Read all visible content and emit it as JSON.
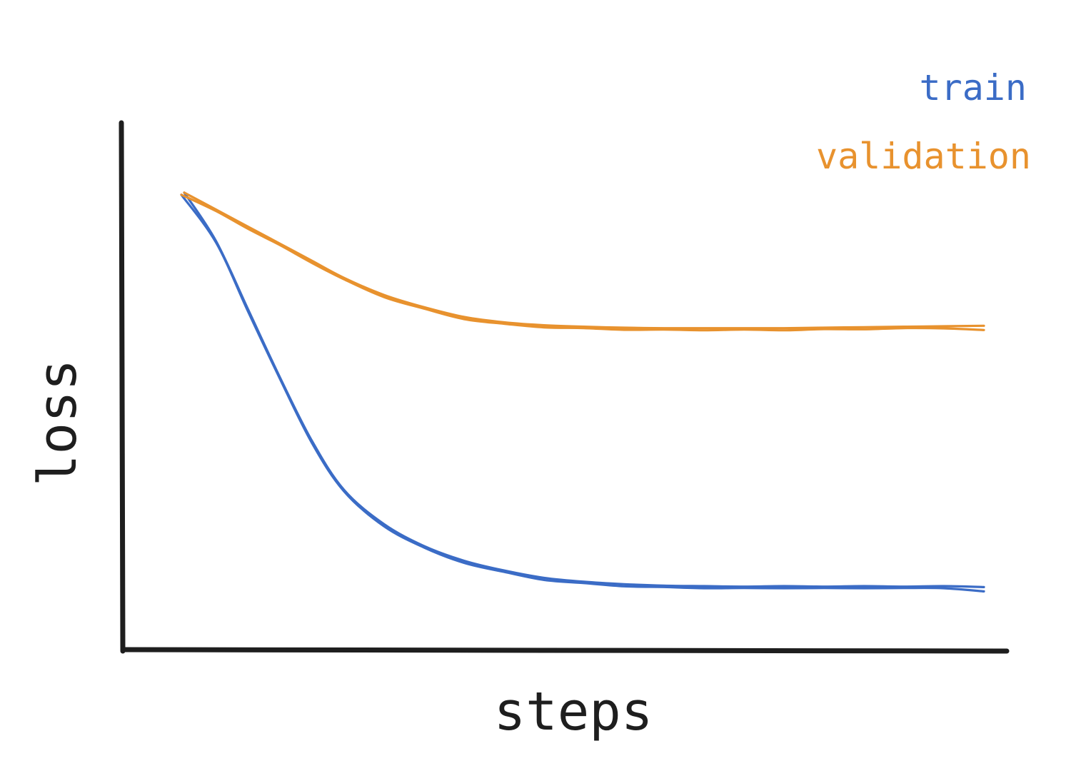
{
  "chart_data": {
    "type": "line",
    "title": "",
    "xlabel": "steps",
    "ylabel": "loss",
    "xlim": [
      0,
      100
    ],
    "ylim": [
      0,
      100
    ],
    "grid": false,
    "ticks_shown": false,
    "legend_placement": "top-right",
    "x": [
      0,
      4,
      8,
      12,
      16,
      20,
      25,
      30,
      35,
      40,
      45,
      50,
      55,
      60,
      65,
      70,
      75,
      80,
      85,
      90,
      95,
      100
    ],
    "series": [
      {
        "name": "train",
        "color": "#3b6cc6",
        "values": [
          93,
          83,
          69,
          55,
          42,
          32,
          25,
          20.5,
          17.5,
          15.5,
          14,
          13.2,
          12.7,
          12.4,
          12.3,
          12.2,
          12.3,
          12.2,
          12.3,
          12.2,
          12.3,
          12.1
        ]
      },
      {
        "name": "validation",
        "color": "#e8922e",
        "values": [
          93,
          89.5,
          86,
          82.5,
          79,
          75.5,
          72,
          69.5,
          67.5,
          66.4,
          65.8,
          65.5,
          65.3,
          65.2,
          65.2,
          65.2,
          65.2,
          65.3,
          65.4,
          65.5,
          65.6,
          65.7
        ]
      }
    ]
  }
}
